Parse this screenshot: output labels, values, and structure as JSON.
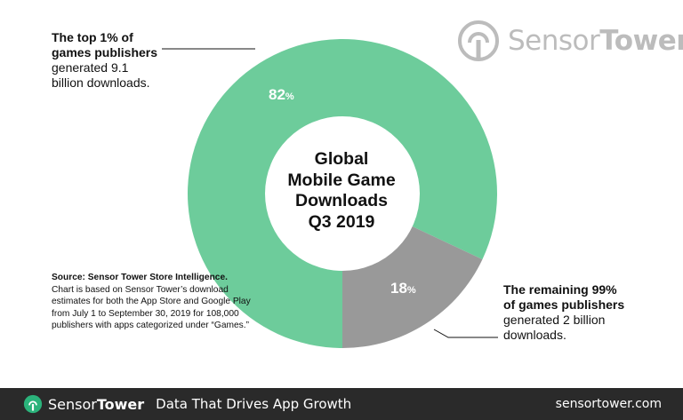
{
  "chart_data": {
    "type": "pie",
    "subtype": "donut",
    "title_lines": [
      "Global",
      "Mobile Game",
      "Downloads",
      "Q3 2019"
    ],
    "categories": [
      "Top 1% of games publishers",
      "Remaining 99% of games publishers"
    ],
    "values": [
      82,
      18
    ],
    "value_labels": [
      "82",
      "18"
    ],
    "value_unit": "%",
    "colors": [
      "#6dcc9b",
      "#999999"
    ]
  },
  "annotations": {
    "top": {
      "bold_lines": [
        "The top 1% of",
        "games publishers"
      ],
      "regular_lines": [
        "generated 9.1",
        "billion downloads."
      ]
    },
    "bottom": {
      "bold_lines": [
        "The remaining 99%",
        "of games publishers"
      ],
      "regular_lines": [
        "generated 2 billion",
        "downloads."
      ]
    }
  },
  "source": {
    "bold": "Source: Sensor Tower Store Intelligence.",
    "text": " Chart is based on Sensor Tower’s download estimates for both the App Store and Google Play from July 1 to September 30, 2019 for 108,000 publishers with apps categorized under “Games.”"
  },
  "branding": {
    "logo_part1": "Sensor",
    "logo_part2": "Tower",
    "logo_icon": "sensortower-logo-icon",
    "tagline": "Data That Drives App Growth",
    "url": "sensortower.com"
  }
}
